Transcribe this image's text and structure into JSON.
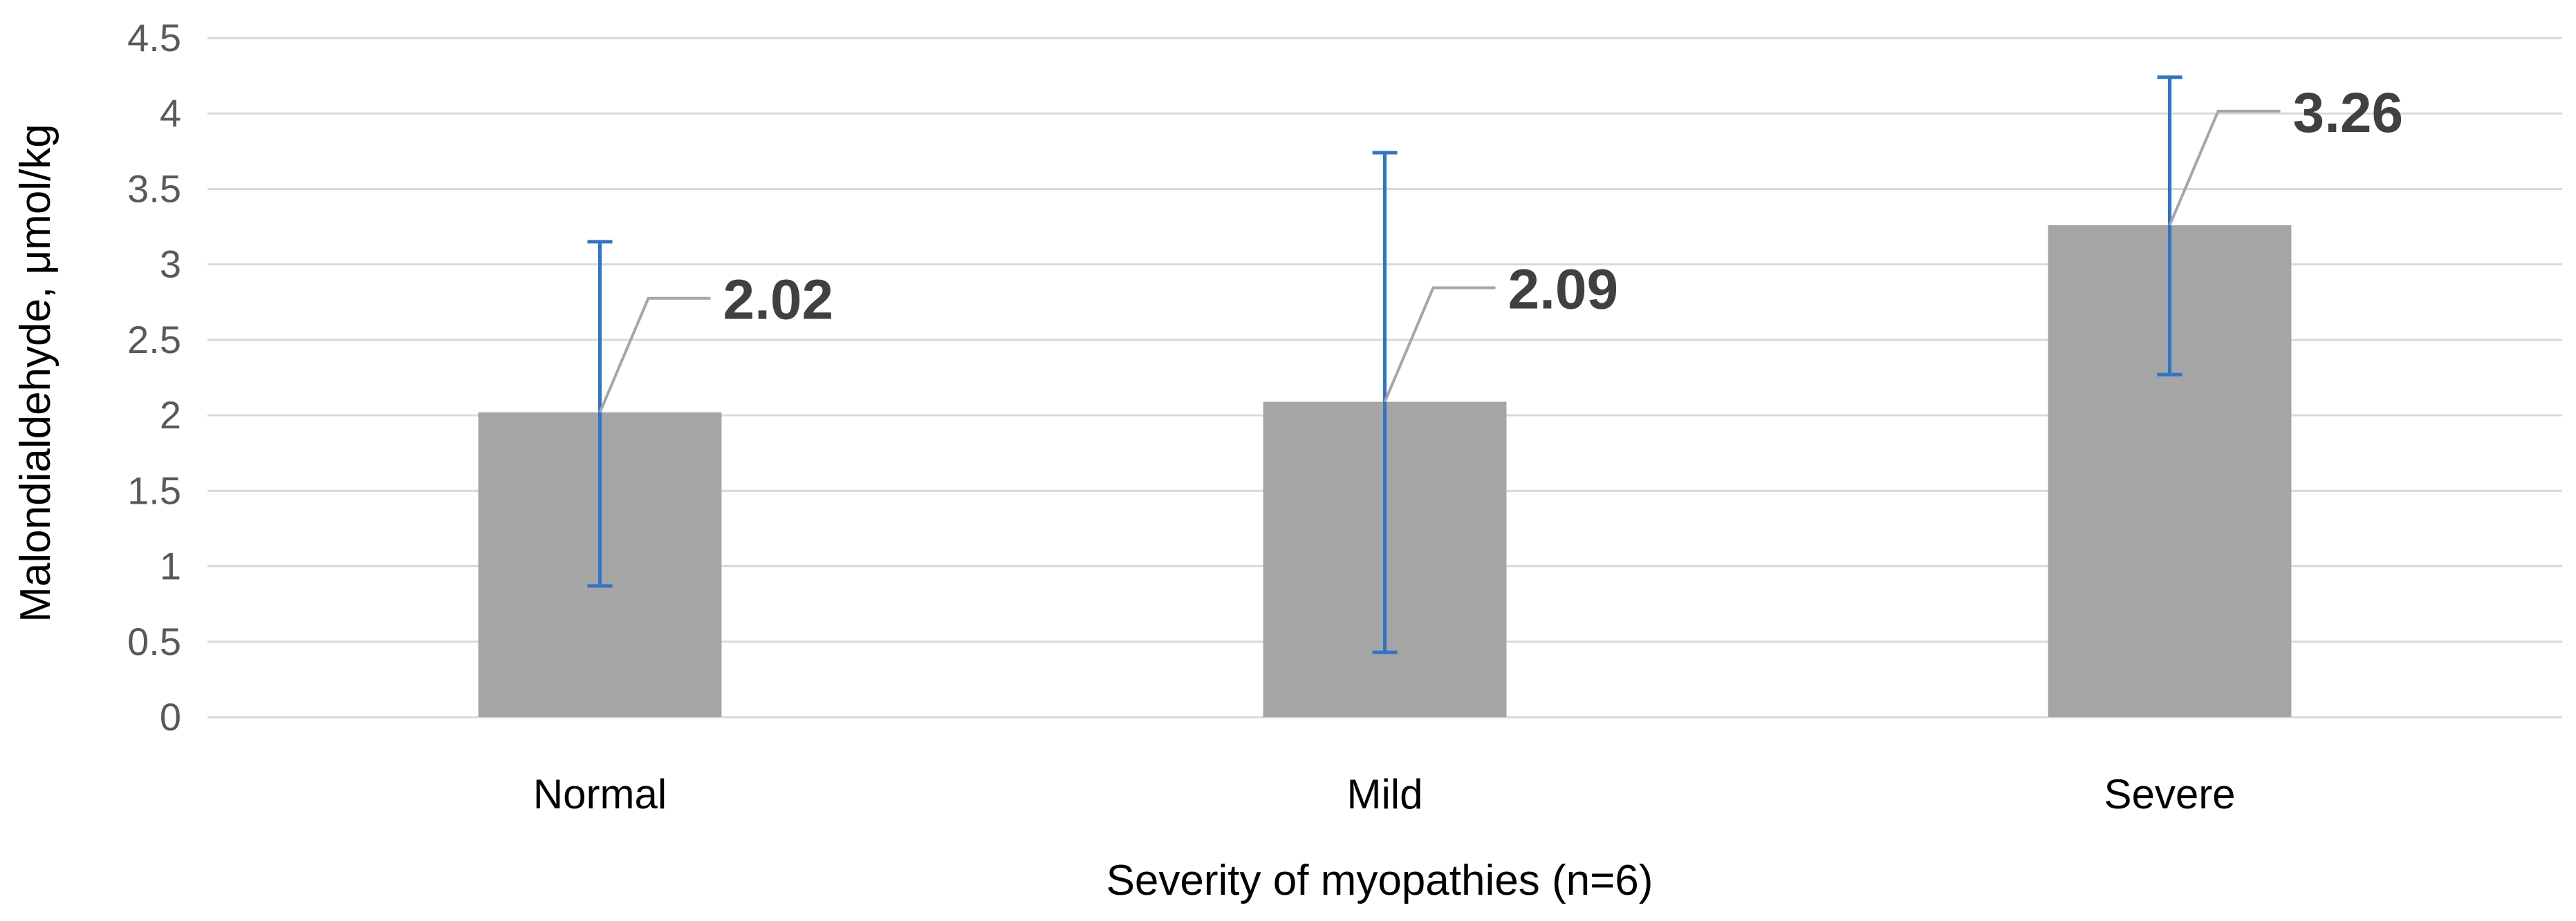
{
  "chart_data": {
    "type": "bar",
    "title": "",
    "xlabel": "Severity of myopathies (n=6)",
    "ylabel": "Malondialdehyde, μmol/kg",
    "categories": [
      "Normal",
      "Mild",
      "Severe"
    ],
    "values": [
      2.02,
      2.09,
      3.26
    ],
    "data_labels": [
      "2.02",
      "2.09",
      "3.26"
    ],
    "error_upper": [
      3.15,
      3.74,
      4.24
    ],
    "error_lower": [
      0.87,
      0.43,
      2.27
    ],
    "ylim": [
      0,
      4.5
    ],
    "yticks": [
      "0",
      "0.5",
      "1",
      "1.5",
      "2",
      "2.5",
      "3",
      "3.5",
      "4",
      "4.5"
    ],
    "grid": true,
    "colors": {
      "bar": "#a5a5a5",
      "error_bar": "#2e75c8",
      "gridline": "#d9d9d9",
      "leader_line": "#a6a6a6"
    }
  }
}
